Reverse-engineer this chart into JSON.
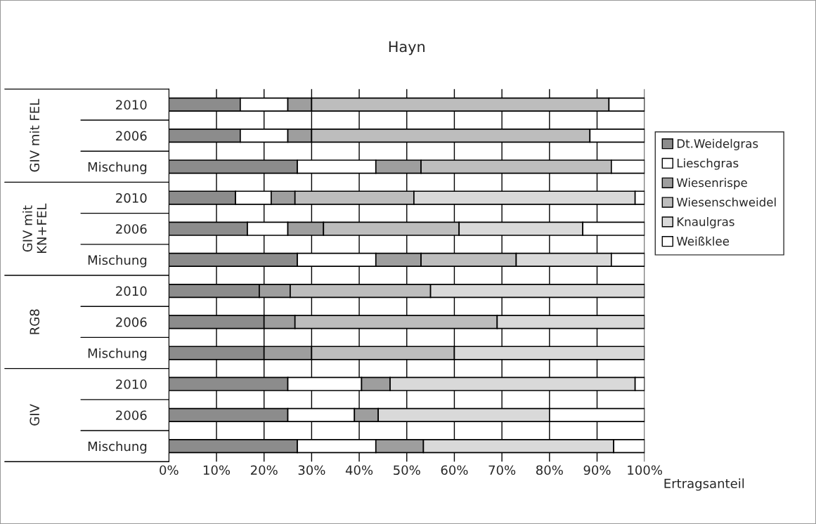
{
  "chart_data": {
    "type": "bar",
    "orientation": "horizontal",
    "stacked": true,
    "title": "Hayn",
    "xlabel": "Ertragsanteil",
    "categories": [
      "2010",
      "2006",
      "Mischung",
      "2010",
      "2006",
      "Mischung",
      "2010",
      "2006",
      "Mischung",
      "2010",
      "2006",
      "Mischung"
    ],
    "annotations": [
      "GIV mit FEL",
      "GIV mit\nKN+FEL",
      "RG8",
      "GIV"
    ],
    "series": [
      {
        "name": "Dt.Weidelgras",
        "color": "#8c8c8c",
        "values": [
          15,
          15,
          27,
          14,
          16.5,
          27,
          19,
          20,
          20,
          25,
          25,
          27
        ]
      },
      {
        "name": "Lieschgras",
        "color": "#ffffff",
        "values": [
          10,
          10,
          16.5,
          7.5,
          8.5,
          16.5,
          0,
          0,
          0,
          15.5,
          14,
          16.5
        ]
      },
      {
        "name": "Wiesenrispe",
        "color": "#9e9e9e",
        "values": [
          5,
          5,
          9.5,
          5,
          7.5,
          9.5,
          6.5,
          6.5,
          10,
          6,
          5,
          10
        ]
      },
      {
        "name": "Wiesenschweidel",
        "color": "#bdbdbd",
        "values": [
          62.5,
          58.5,
          40,
          25,
          28.5,
          20,
          29.5,
          42.5,
          30,
          0,
          0,
          0
        ]
      },
      {
        "name": "Knaulgras",
        "color": "#d9d9d9",
        "values": [
          0,
          0,
          0,
          46.5,
          26,
          20,
          45,
          31,
          40,
          51.5,
          36,
          40
        ]
      },
      {
        "name": "Weißklee",
        "color": "#ffffff",
        "values": [
          7.5,
          11.5,
          7,
          2,
          13,
          7,
          0,
          0,
          0,
          2,
          20,
          6.5
        ]
      }
    ],
    "xlim": [
      0,
      100
    ],
    "xticks": [
      {
        "value": 0,
        "label": "0%"
      },
      {
        "value": 10,
        "label": "10%"
      },
      {
        "value": 20,
        "label": "20%"
      },
      {
        "value": 30,
        "label": "30%"
      },
      {
        "value": 40,
        "label": "40%"
      },
      {
        "value": 50,
        "label": "50%"
      },
      {
        "value": 60,
        "label": "60%"
      },
      {
        "value": 70,
        "label": "70%"
      },
      {
        "value": 80,
        "label": "80%"
      },
      {
        "value": 90,
        "label": "90%"
      },
      {
        "value": 100,
        "label": "100%"
      }
    ],
    "grid": "x",
    "legend": "right"
  }
}
